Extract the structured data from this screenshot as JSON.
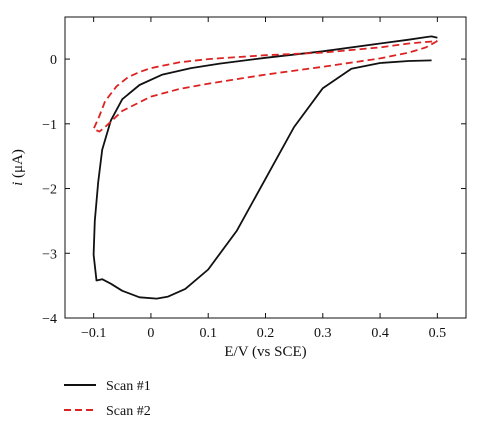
{
  "chart_data": {
    "type": "line",
    "title": "",
    "xlabel": "E/V (vs SCE)",
    "ylabel_italic": "i",
    "ylabel_rest": " (μA)",
    "xlim": [
      -0.15,
      0.55
    ],
    "ylim": [
      -4,
      0.65
    ],
    "xticks": [
      -0.1,
      0,
      0.1,
      0.2,
      0.3,
      0.4,
      0.5
    ],
    "xtick_labels": [
      "−0.1",
      "0",
      "0.1",
      "0.2",
      "0.3",
      "0.4",
      "0.5"
    ],
    "yticks": [
      -4,
      -3,
      -2,
      -1,
      0
    ],
    "ytick_labels": [
      "−4",
      "−3",
      "−2",
      "−1",
      "0"
    ],
    "grid": false,
    "legend_position": "below-left",
    "series": [
      {
        "name": "Scan #1",
        "color": "#111111",
        "dash": "solid",
        "points": [
          [
            0.49,
            -0.02
          ],
          [
            0.45,
            -0.03
          ],
          [
            0.4,
            -0.06
          ],
          [
            0.35,
            -0.15
          ],
          [
            0.3,
            -0.45
          ],
          [
            0.25,
            -1.05
          ],
          [
            0.2,
            -1.85
          ],
          [
            0.15,
            -2.65
          ],
          [
            0.1,
            -3.25
          ],
          [
            0.06,
            -3.55
          ],
          [
            0.03,
            -3.67
          ],
          [
            0.01,
            -3.7
          ],
          [
            -0.02,
            -3.68
          ],
          [
            -0.05,
            -3.58
          ],
          [
            -0.07,
            -3.47
          ],
          [
            -0.085,
            -3.4
          ],
          [
            -0.095,
            -3.42
          ],
          [
            -0.1,
            -3.02
          ],
          [
            -0.098,
            -2.5
          ],
          [
            -0.092,
            -1.9
          ],
          [
            -0.085,
            -1.4
          ],
          [
            -0.07,
            -0.95
          ],
          [
            -0.05,
            -0.62
          ],
          [
            -0.02,
            -0.4
          ],
          [
            0.02,
            -0.24
          ],
          [
            0.07,
            -0.14
          ],
          [
            0.12,
            -0.07
          ],
          [
            0.2,
            0.02
          ],
          [
            0.3,
            0.12
          ],
          [
            0.4,
            0.24
          ],
          [
            0.45,
            0.3
          ],
          [
            0.48,
            0.34
          ],
          [
            0.49,
            0.35
          ],
          [
            0.5,
            0.33
          ]
        ]
      },
      {
        "name": "Scan #2",
        "color": "#dd2222",
        "dash": "dashed",
        "points": [
          [
            0.5,
            0.28
          ],
          [
            0.48,
            0.18
          ],
          [
            0.45,
            0.1
          ],
          [
            0.4,
            0.01
          ],
          [
            0.3,
            -0.12
          ],
          [
            0.2,
            -0.24
          ],
          [
            0.1,
            -0.38
          ],
          [
            0.05,
            -0.46
          ],
          [
            0.0,
            -0.58
          ],
          [
            -0.05,
            -0.8
          ],
          [
            -0.08,
            -1.05
          ],
          [
            -0.09,
            -1.12
          ],
          [
            -0.1,
            -1.08
          ],
          [
            -0.09,
            -0.88
          ],
          [
            -0.08,
            -0.65
          ],
          [
            -0.06,
            -0.42
          ],
          [
            -0.04,
            -0.28
          ],
          [
            -0.02,
            -0.2
          ],
          [
            0.0,
            -0.14
          ],
          [
            0.05,
            -0.05
          ],
          [
            0.1,
            0.0
          ],
          [
            0.2,
            0.06
          ],
          [
            0.3,
            0.1
          ],
          [
            0.4,
            0.18
          ],
          [
            0.45,
            0.24
          ],
          [
            0.5,
            0.28
          ]
        ]
      }
    ]
  }
}
